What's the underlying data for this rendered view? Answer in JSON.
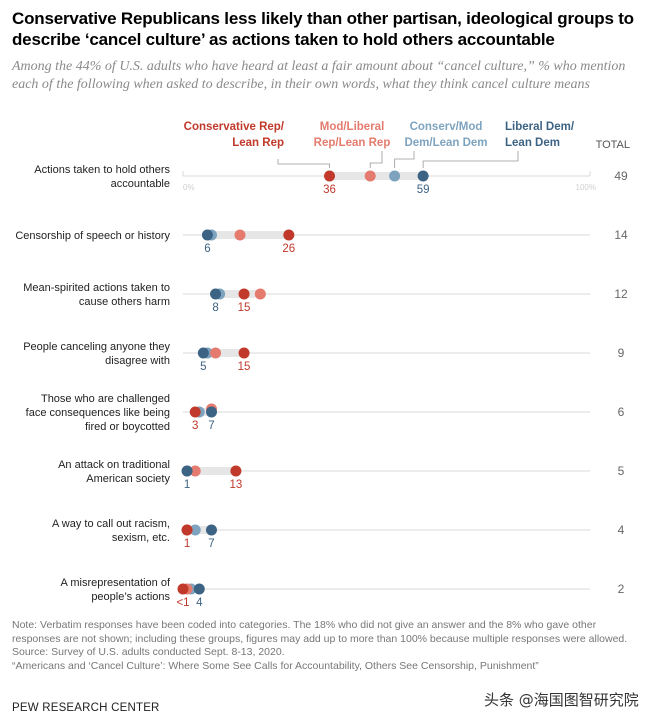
{
  "title": "Conservative Republicans less likely than other partisan, ideological groups to describe ‘cancel culture’ as actions taken to hold others accountable",
  "subtitle": "Among the 44% of U.S. adults who have heard at least a fair amount about “cancel culture,” % who mention each of the following when asked to describe, in their own words, what they think cancel culture means",
  "notes": {
    "note": "Note: Verbatim responses have been coded into categories. The 18% who did not give an answer and the 8% who gave other responses are not shown; including these groups, figures may add up to more than 100% because multiple responses were allowed.",
    "source": "Source: Survey of U.S. adults conducted Sept. 8-13, 2020.",
    "report": "“Americans and ‘Cancel Culture’: Where Some See Calls for Accountability, Others See Censorship, Punishment”"
  },
  "org": "PEW RESEARCH CENTER",
  "watermark": "头条 @海国图智研究院",
  "chart_data": {
    "type": "dot-plot",
    "title": "Conservative Republicans less likely than other partisan, ideological groups to describe ‘cancel culture’ as actions taken to hold others accountable",
    "xlim": [
      0,
      100
    ],
    "x_tick_labels": [
      "0%",
      "100%"
    ],
    "total_label": "TOTAL",
    "series": [
      {
        "name": "Conservative Rep/ Lean Rep",
        "name_lines": [
          "Conservative Rep/",
          "Lean Rep"
        ],
        "color": "#c0392b"
      },
      {
        "name": "Mod/Liberal Rep/Lean Rep",
        "name_lines": [
          "Mod/Liberal",
          "Rep/Lean Rep"
        ],
        "color": "#e57b6e"
      },
      {
        "name": "Conserv/Mod Dem/Lean Dem",
        "name_lines": [
          "Conserv/Mod",
          "Dem/Lean Dem"
        ],
        "color": "#7ea3bf"
      },
      {
        "name": "Liberal Dem/ Lean Dem",
        "name_lines": [
          "Liberal Dem/",
          "Lean Dem"
        ],
        "color": "#3d6384"
      }
    ],
    "categories": [
      {
        "label_lines": [
          "Actions taken to hold others",
          "accountable"
        ],
        "values": [
          36,
          46,
          52,
          59
        ],
        "total": "49",
        "labels": [
          {
            "series": 0,
            "text": "36"
          },
          {
            "series": 3,
            "text": "59"
          }
        ]
      },
      {
        "label_lines": [
          "Censorship of speech or history"
        ],
        "values": [
          26,
          14,
          7,
          6
        ],
        "total": "14",
        "labels": [
          {
            "series": 3,
            "text": "6"
          },
          {
            "series": 0,
            "text": "26"
          }
        ]
      },
      {
        "label_lines": [
          "Mean-spirited actions taken to",
          "cause others harm"
        ],
        "values": [
          15,
          19,
          9,
          8
        ],
        "total": "12",
        "labels": [
          {
            "series": 3,
            "text": "8"
          },
          {
            "series": 0,
            "text": "15"
          }
        ]
      },
      {
        "label_lines": [
          "People canceling anyone they",
          "disagree with"
        ],
        "values": [
          15,
          8,
          6,
          5
        ],
        "total": "9",
        "labels": [
          {
            "series": 3,
            "text": "5"
          },
          {
            "series": 0,
            "text": "15"
          }
        ]
      },
      {
        "label_lines": [
          "Those who are challenged",
          "face consequences like being",
          "fired or boycotted"
        ],
        "values": [
          3,
          7,
          4,
          7
        ],
        "total": "6",
        "labels": [
          {
            "series": 0,
            "text": "3"
          },
          {
            "series": 3,
            "text": "7"
          }
        ]
      },
      {
        "label_lines": [
          "An attack on traditional",
          "American society"
        ],
        "values": [
          13,
          3,
          1,
          1
        ],
        "total": "5",
        "labels": [
          {
            "series": 3,
            "text": "1"
          },
          {
            "series": 0,
            "text": "13"
          }
        ]
      },
      {
        "label_lines": [
          "A way to call out racism,",
          "sexism, etc."
        ],
        "values": [
          1,
          1,
          3,
          7
        ],
        "total": "4",
        "labels": [
          {
            "series": 0,
            "text": "1"
          },
          {
            "series": 3,
            "text": "7"
          }
        ]
      },
      {
        "label_lines": [
          "A misrepresentation of",
          "people’s actions"
        ],
        "values": [
          0,
          1,
          2,
          4
        ],
        "total": "2",
        "labels": [
          {
            "series": 0,
            "text": "<1"
          },
          {
            "series": 3,
            "text": "4"
          }
        ]
      }
    ]
  }
}
